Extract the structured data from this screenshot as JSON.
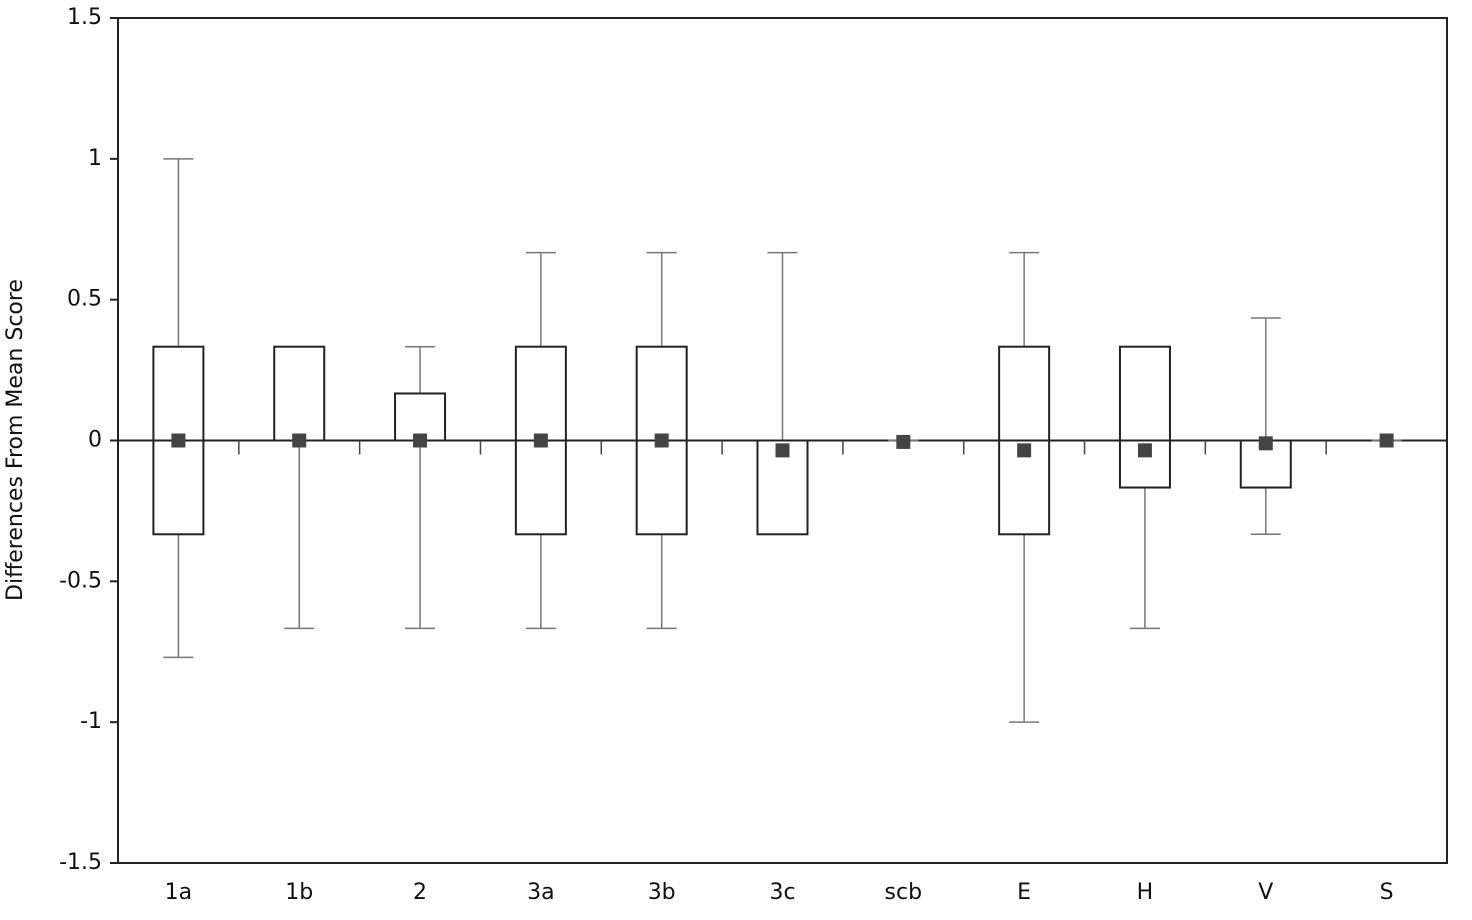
{
  "chart_data": {
    "type": "box",
    "ylabel": "Differences From Mean Score",
    "categories": [
      "1a",
      "1b",
      "2",
      "3a",
      "3b",
      "3c",
      "scb",
      "E",
      "H",
      "V",
      "S"
    ],
    "min": [
      -0.77,
      -0.667,
      -0.667,
      -0.667,
      -0.667,
      -0.333,
      0,
      -1,
      -0.667,
      -0.333,
      0
    ],
    "q1": [
      -0.333,
      0,
      0,
      -0.333,
      -0.333,
      -0.333,
      0,
      -0.333,
      -0.167,
      -0.167,
      0
    ],
    "q3": [
      0.333,
      0.333,
      0.167,
      0.333,
      0.333,
      0,
      0,
      0.333,
      0.333,
      0,
      0
    ],
    "max": [
      1,
      0.333,
      0.333,
      0.667,
      0.667,
      0.667,
      0,
      0.667,
      0.333,
      0.435,
      0
    ],
    "mean": [
      0,
      0,
      0,
      0,
      0,
      -0.035,
      -0.005,
      -0.035,
      -0.035,
      -0.01,
      0
    ],
    "ylim": [
      -1.5,
      1.5
    ],
    "yticks": [
      1.5,
      1,
      0.5,
      0,
      -0.5,
      -1,
      -1.5
    ],
    "box_color": "#222222",
    "whisker_color": "#777777",
    "mean_color": "#444444"
  }
}
